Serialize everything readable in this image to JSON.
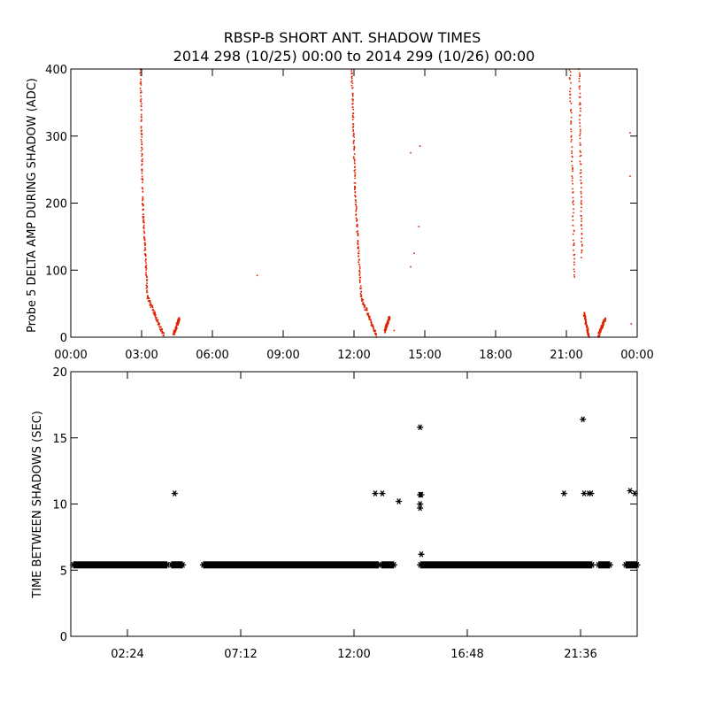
{
  "figure": {
    "title": "RBSP-B SHORT ANT. SHADOW TIMES",
    "subtitle": "2014 298 (10/25) 00:00 to 2014 299 (10/26) 00:00"
  },
  "chart_data": [
    {
      "type": "scatter",
      "title": "",
      "xlabel": "",
      "ylabel": "Probe 5 DELTA AMP DURING SHADOW (ADC)",
      "xlim": [
        0,
        24
      ],
      "ylim": [
        0,
        400
      ],
      "x_ticks": [
        0,
        3,
        6,
        9,
        12,
        15,
        18,
        21,
        24
      ],
      "x_tick_labels": [
        "00:00",
        "03:00",
        "06:00",
        "09:00",
        "12:00",
        "15:00",
        "18:00",
        "21:00",
        "00:00"
      ],
      "y_ticks": [
        0,
        100,
        200,
        300,
        400
      ],
      "y_tick_labels": [
        "0",
        "100",
        "200",
        "300",
        "400"
      ],
      "grid": false,
      "point_color": "#dd2200",
      "segments": [
        {
          "from": [
            2.95,
            400
          ],
          "to": [
            3.05,
            200
          ]
        },
        {
          "from": [
            3.05,
            200
          ],
          "to": [
            3.25,
            60
          ]
        },
        {
          "from": [
            3.25,
            60
          ],
          "to": [
            3.95,
            2
          ]
        },
        {
          "from": [
            4.35,
            4
          ],
          "to": [
            4.6,
            28
          ]
        },
        {
          "from": [
            11.9,
            400
          ],
          "to": [
            12.05,
            220
          ]
        },
        {
          "from": [
            12.05,
            220
          ],
          "to": [
            12.3,
            60
          ]
        },
        {
          "from": [
            12.3,
            60
          ],
          "to": [
            12.95,
            2
          ]
        },
        {
          "from": [
            13.3,
            8
          ],
          "to": [
            13.5,
            30
          ]
        },
        {
          "from": [
            21.15,
            400
          ],
          "to": [
            21.35,
            90
          ]
        },
        {
          "from": [
            21.55,
            400
          ],
          "to": [
            21.65,
            120
          ]
        },
        {
          "from": [
            21.75,
            35
          ],
          "to": [
            21.95,
            2
          ]
        },
        {
          "from": [
            22.35,
            2
          ],
          "to": [
            22.65,
            28
          ]
        }
      ],
      "points": [
        {
          "x": 7.9,
          "y": 92
        },
        {
          "x": 14.4,
          "y": 275
        },
        {
          "x": 14.8,
          "y": 285
        },
        {
          "x": 14.55,
          "y": 125
        },
        {
          "x": 14.4,
          "y": 105
        },
        {
          "x": 14.75,
          "y": 165
        },
        {
          "x": 13.7,
          "y": 10
        },
        {
          "x": 23.7,
          "y": 305
        },
        {
          "x": 23.7,
          "y": 240
        },
        {
          "x": 23.75,
          "y": 20
        }
      ]
    },
    {
      "type": "scatter",
      "title": "",
      "xlabel": "",
      "ylabel": "TIME BETWEEN SHADOWS (SEC)",
      "xlim": [
        0,
        24
      ],
      "ylim": [
        0,
        20
      ],
      "x_ticks": [
        2.4,
        7.2,
        12.0,
        16.8,
        21.6
      ],
      "x_tick_labels": [
        "02:24",
        "07:12",
        "12:00",
        "16:48",
        "21:36"
      ],
      "y_ticks": [
        0,
        5,
        10,
        15,
        20
      ],
      "y_tick_labels": [
        "0",
        "5",
        "10",
        "15",
        "20"
      ],
      "grid": false,
      "marker": "asterisk",
      "baseline_value": 5.4,
      "baseline_segments": [
        [
          0.1,
          4.1
        ],
        [
          4.25,
          4.75
        ],
        [
          5.6,
          13.05
        ],
        [
          13.15,
          13.7
        ],
        [
          14.8,
          22.1
        ],
        [
          22.35,
          22.85
        ],
        [
          23.5,
          24.0
        ]
      ],
      "points": [
        {
          "x": 4.4,
          "y": 10.8
        },
        {
          "x": 12.9,
          "y": 10.8
        },
        {
          "x": 13.2,
          "y": 10.8
        },
        {
          "x": 13.9,
          "y": 10.2
        },
        {
          "x": 14.8,
          "y": 15.8
        },
        {
          "x": 14.8,
          "y": 10.7
        },
        {
          "x": 14.85,
          "y": 10.7
        },
        {
          "x": 14.8,
          "y": 10.0
        },
        {
          "x": 14.8,
          "y": 9.7
        },
        {
          "x": 14.85,
          "y": 6.2
        },
        {
          "x": 20.9,
          "y": 10.8
        },
        {
          "x": 21.7,
          "y": 16.4
        },
        {
          "x": 21.75,
          "y": 10.8
        },
        {
          "x": 21.95,
          "y": 10.8
        },
        {
          "x": 22.05,
          "y": 10.8
        },
        {
          "x": 23.7,
          "y": 11.0
        },
        {
          "x": 23.9,
          "y": 10.8
        },
        {
          "x": 23.7,
          "y": 5.4
        }
      ]
    }
  ]
}
